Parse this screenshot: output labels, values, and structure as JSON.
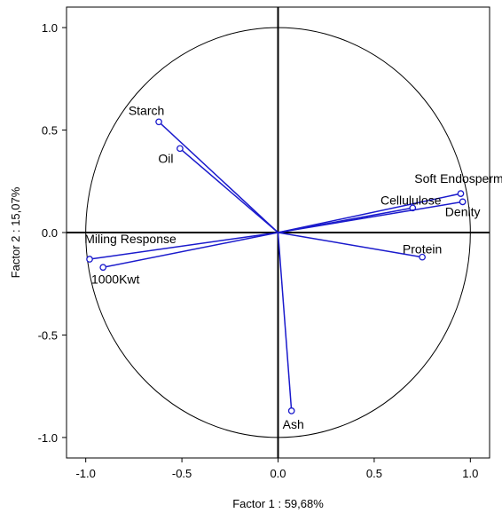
{
  "chart_data": {
    "type": "scatter",
    "subtype": "pca-correlation-circle",
    "title": "",
    "xlabel": "Factor 1 : 59,68%",
    "ylabel": "Factor 2 : 15,07%",
    "xlim": [
      -1.1,
      1.1
    ],
    "ylim": [
      -1.1,
      1.1
    ],
    "x_ticks": [
      "-1.0",
      "-0.5",
      "0.0",
      "0.5",
      "1.0"
    ],
    "y_ticks": [
      "1.0",
      "0.5",
      "0.0",
      "-0.5",
      "-1.0"
    ],
    "grid": false,
    "unit_circle": true,
    "line_color": "#1a1acc",
    "points": [
      {
        "label": "Starch",
        "x": -0.62,
        "y": 0.54
      },
      {
        "label": "Oil",
        "x": -0.51,
        "y": 0.41
      },
      {
        "label": "Soft Endosperm",
        "x": 0.95,
        "y": 0.19
      },
      {
        "label": "Cellululose",
        "x": 0.7,
        "y": 0.12
      },
      {
        "label": "Denity",
        "x": 0.96,
        "y": 0.15
      },
      {
        "label": "Protein",
        "x": 0.75,
        "y": -0.12
      },
      {
        "label": "Miling Response",
        "x": -0.98,
        "y": -0.13
      },
      {
        "label": "1000Kwt",
        "x": -0.91,
        "y": -0.17
      },
      {
        "label": "Ash",
        "x": 0.07,
        "y": -0.87
      }
    ]
  }
}
